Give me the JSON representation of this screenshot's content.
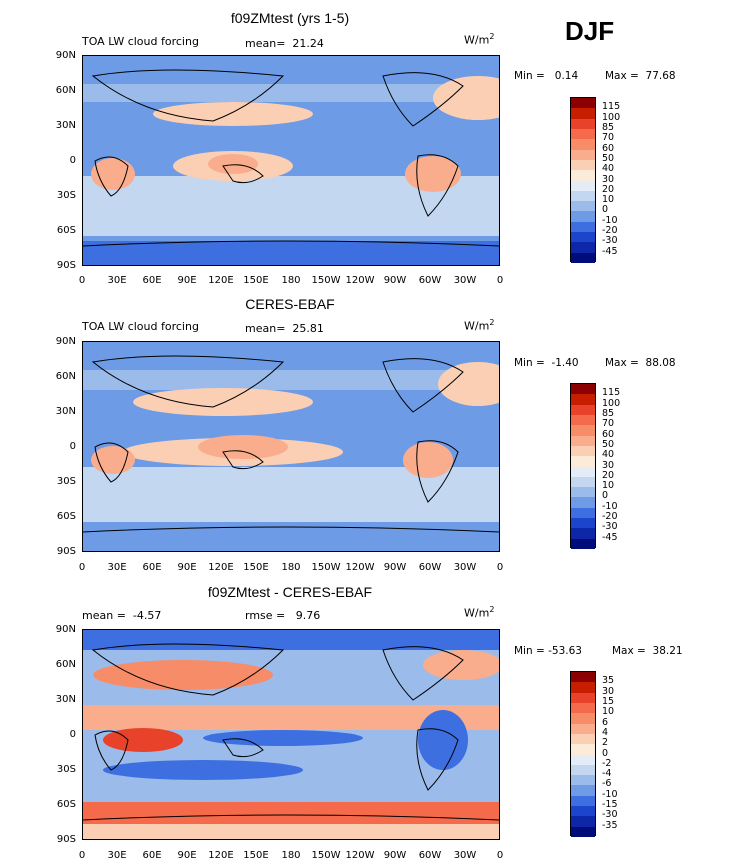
{
  "season": "DJF",
  "units": "W/m",
  "units_sup": "2",
  "panels": [
    {
      "title": "f09ZMtest (yrs 1-5)",
      "left_label": "TOA LW cloud forcing",
      "mid_label": "mean=  21.24",
      "min_label": "Min =   0.14",
      "max_label": "Max =  77.68"
    },
    {
      "title": "CERES-EBAF",
      "left_label": "TOA LW cloud forcing",
      "mid_label": "mean=  25.81",
      "min_label": "Min =  -1.40",
      "max_label": "Max =  88.08"
    },
    {
      "title": "f09ZMtest - CERES-EBAF",
      "left_label": "mean =  -4.57",
      "mid_label": "rmse =   9.76",
      "min_label": "Min = -53.63",
      "max_label": "Max =  38.21"
    }
  ],
  "lat_labels": [
    "90N",
    "60N",
    "30N",
    "0",
    "30S",
    "60S",
    "90S"
  ],
  "lon_labels": [
    "0",
    "30E",
    "60E",
    "90E",
    "120E",
    "150E",
    "180",
    "150W",
    "120W",
    "90W",
    "60W",
    "30W",
    "0"
  ],
  "colorbar_abs": {
    "labels": [
      "115",
      "100",
      "85",
      "70",
      "60",
      "50",
      "40",
      "30",
      "20",
      "10",
      "0",
      "-10",
      "-20",
      "-30",
      "-45"
    ],
    "colors": [
      "#8b0000",
      "#c81e00",
      "#e8422a",
      "#f46a4a",
      "#f78c68",
      "#f9ad8d",
      "#fbcfb4",
      "#fdebd9",
      "#e4ecf7",
      "#c3d7f1",
      "#9bbceb",
      "#6e9be6",
      "#3e6fe0",
      "#1d45cc",
      "#0d27a8",
      "#000c7a"
    ]
  },
  "colorbar_diff": {
    "labels": [
      "35",
      "30",
      "15",
      "10",
      "6",
      "4",
      "2",
      "0",
      "-2",
      "-4",
      "-6",
      "-10",
      "-15",
      "-30",
      "-35"
    ],
    "colors": [
      "#8b0000",
      "#c81e00",
      "#e8422a",
      "#f46a4a",
      "#f78c68",
      "#f9ad8d",
      "#fbcfb4",
      "#fdebd9",
      "#e4ecf7",
      "#c3d7f1",
      "#9bbceb",
      "#6e9be6",
      "#3e6fe0",
      "#1d45cc",
      "#0d27a8",
      "#000c7a"
    ]
  }
}
